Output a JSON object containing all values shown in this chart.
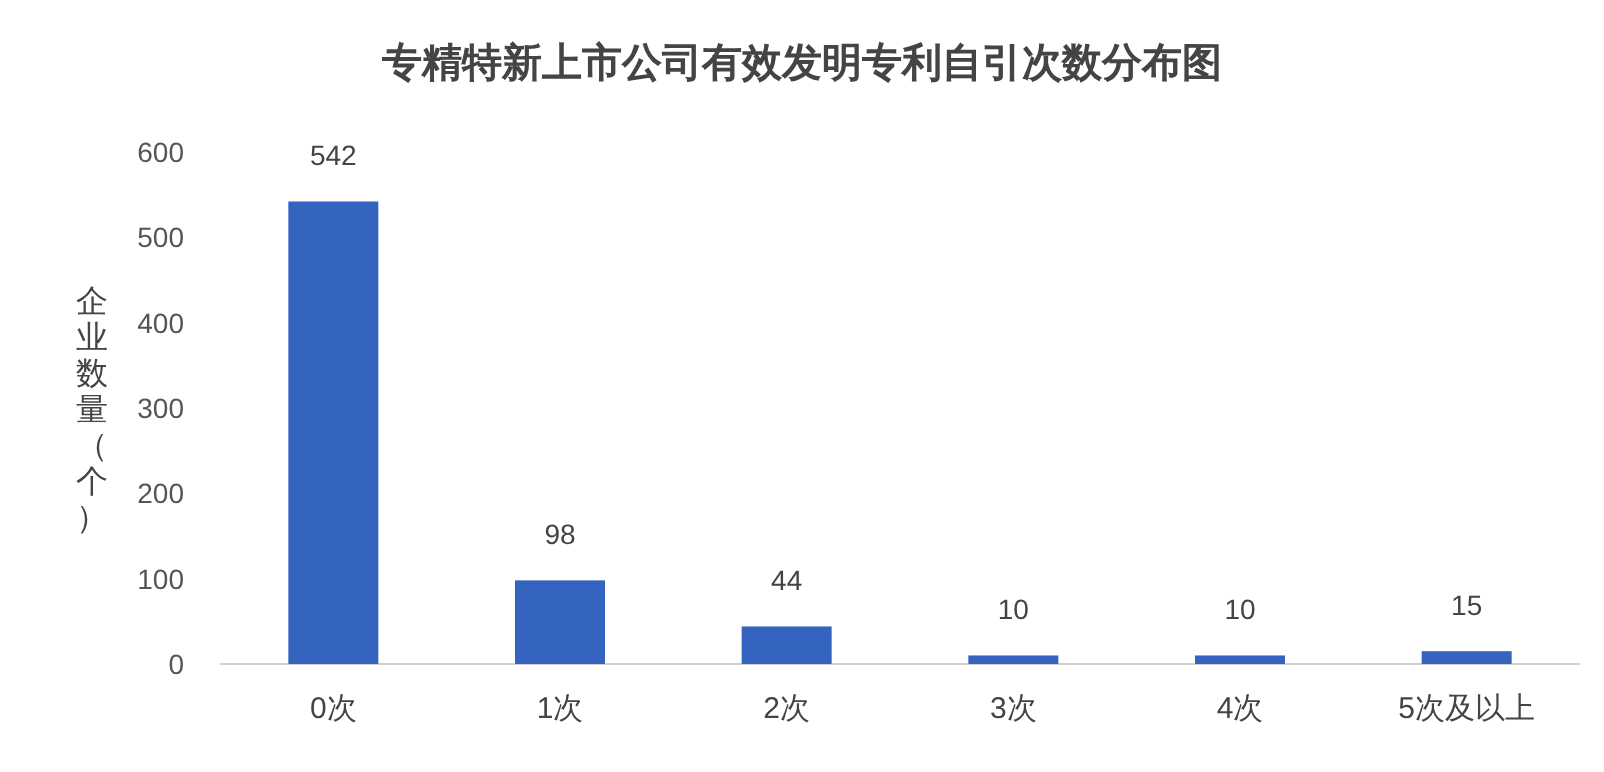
{
  "chart_data": {
    "type": "bar",
    "title": "专精特新上市公司有效发明专利自引次数分布图",
    "ylabel": "企业数量（个）",
    "categories": [
      "0次",
      "1次",
      "2次",
      "3次",
      "4次",
      "5次及以上"
    ],
    "values": [
      542,
      98,
      44,
      10,
      10,
      15
    ],
    "color": "#3563c0",
    "ylim": [
      0,
      600
    ],
    "yticks": [
      0,
      100,
      200,
      300,
      400,
      500,
      600
    ],
    "grid": false,
    "data_labels": true
  }
}
